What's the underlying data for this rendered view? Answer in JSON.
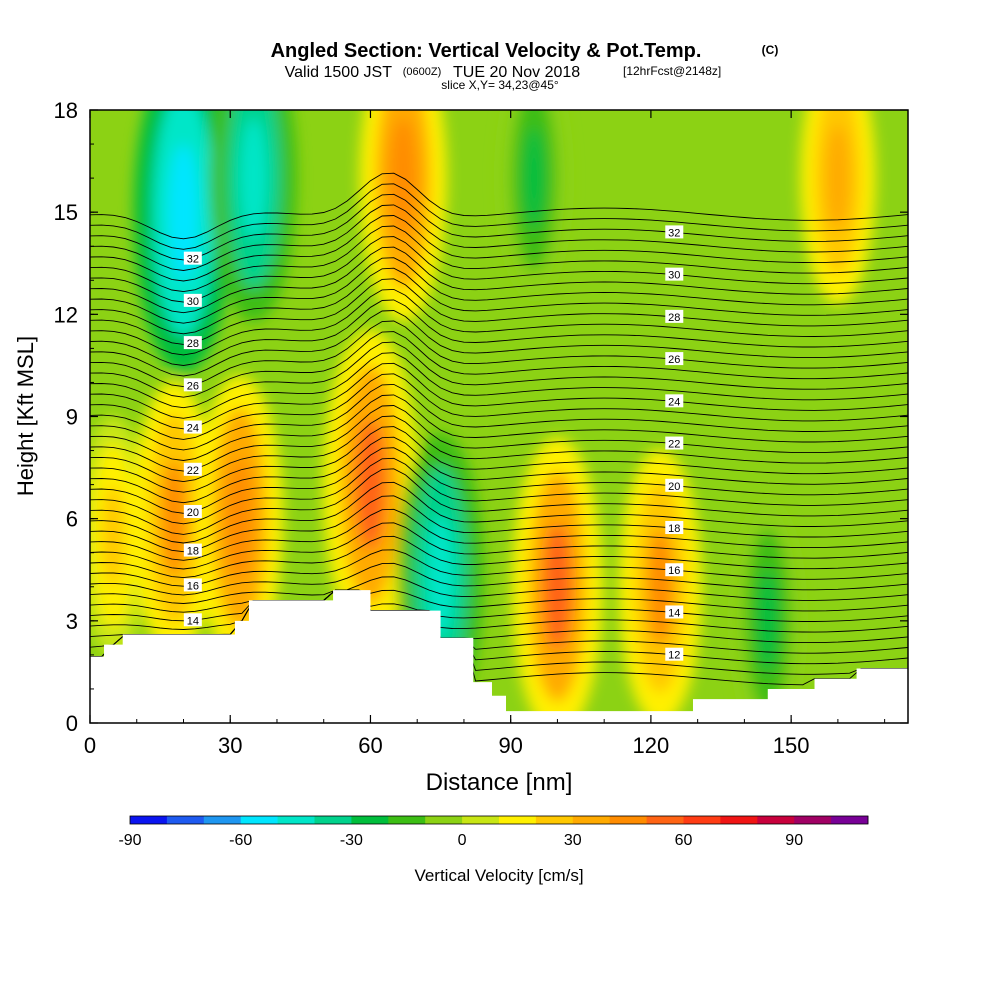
{
  "header": {
    "title": "Angled Section: Vertical Velocity & Pot.Temp.",
    "title_unit": "(C)",
    "valid_prefix": "Valid 1500 JST",
    "valid_z": "(0600Z)",
    "valid_date": "TUE 20 Nov 2018",
    "forecast": "[12hrFcst@2148z]",
    "slice": "slice X,Y= 34,23@45°"
  },
  "chart_data": {
    "type": "heatmap",
    "xlabel": "Distance [nm]",
    "ylabel": "Height [Kft MSL]",
    "xlim": [
      0,
      175
    ],
    "ylim": [
      0,
      18
    ],
    "x_ticks": [
      "0",
      "30",
      "60",
      "90",
      "120",
      "150"
    ],
    "y_ticks": [
      "0",
      "3",
      "6",
      "9",
      "12",
      "15",
      "18"
    ],
    "colorbar": {
      "label": "Vertical Velocity [cm/s]",
      "tick_labels": [
        "-90",
        "-60",
        "-30",
        "0",
        "30",
        "60",
        "90"
      ],
      "levels": [
        -90,
        -80,
        -70,
        -60,
        -50,
        -40,
        -30,
        -20,
        -10,
        0,
        10,
        20,
        30,
        40,
        50,
        60,
        70,
        80,
        90,
        100,
        110
      ],
      "colors": [
        "#0a14f0",
        "#1e5af0",
        "#1e96f0",
        "#00e6ff",
        "#00e6c8",
        "#00d28c",
        "#00be3c",
        "#3cbe14",
        "#8cd214",
        "#c8e614",
        "#fff000",
        "#ffc800",
        "#ffaa00",
        "#ff8c00",
        "#ff6414",
        "#ff3c14",
        "#f01414",
        "#c8003c",
        "#a00064",
        "#780096"
      ]
    },
    "terrain_kft": [
      [
        0,
        1.95
      ],
      [
        3,
        2.3
      ],
      [
        7,
        2.6
      ],
      [
        28,
        2.6
      ],
      [
        31,
        3.0
      ],
      [
        34,
        3.6
      ],
      [
        49,
        3.6
      ],
      [
        52,
        3.9
      ],
      [
        57,
        3.9
      ],
      [
        60,
        3.3
      ],
      [
        70,
        3.3
      ],
      [
        75,
        2.5
      ],
      [
        82,
        1.2
      ],
      [
        86,
        0.8
      ],
      [
        89,
        0.35
      ],
      [
        122,
        0.35
      ],
      [
        129,
        0.7
      ],
      [
        142,
        0.7
      ],
      [
        145,
        1.0
      ],
      [
        152,
        1.0
      ],
      [
        155,
        1.3
      ],
      [
        161,
        1.3
      ],
      [
        164,
        1.6
      ],
      [
        175,
        1.6
      ]
    ],
    "vertical_velocity_features": [
      {
        "x": 5,
        "y": 5.5,
        "value": 25
      },
      {
        "x": 18,
        "y": 6,
        "value": 40
      },
      {
        "x": 32,
        "y": 6,
        "value": 45
      },
      {
        "x": 60,
        "y": 7,
        "value": 55
      },
      {
        "x": 67,
        "y": 16,
        "value": 45
      },
      {
        "x": 75,
        "y": 4.3,
        "value": -45
      },
      {
        "x": 20,
        "y": 15,
        "value": -60
      },
      {
        "x": 35,
        "y": 16,
        "value": -45
      },
      {
        "x": 100,
        "y": 4,
        "value": 50
      },
      {
        "x": 122,
        "y": 4,
        "value": 40
      },
      {
        "x": 160,
        "y": 16,
        "value": 30
      },
      {
        "x": 95,
        "y": 16,
        "value": -25
      },
      {
        "x": 145,
        "y": 3,
        "value": -25
      }
    ],
    "theta_contours": [
      {
        "value": 12,
        "label": "12"
      },
      {
        "value": 14,
        "label": "14"
      },
      {
        "value": 16,
        "label": "16"
      },
      {
        "value": 18,
        "label": "18"
      },
      {
        "value": 20,
        "label": "20"
      },
      {
        "value": 22,
        "label": "22"
      },
      {
        "value": 24,
        "label": "24"
      },
      {
        "value": 26,
        "label": "26"
      },
      {
        "value": 28,
        "label": "28"
      },
      {
        "value": 30,
        "label": "30"
      },
      {
        "value": 32,
        "label": "32"
      }
    ]
  }
}
